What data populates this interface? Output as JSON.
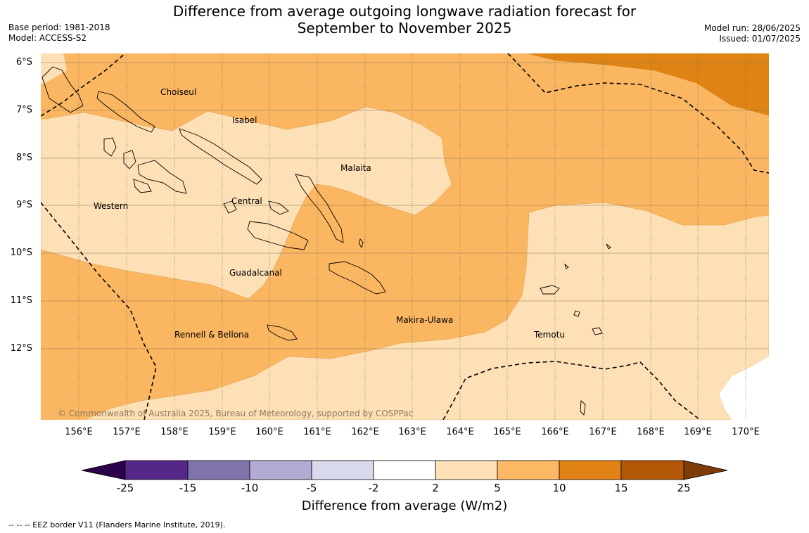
{
  "title_line1": "Difference from average outgoing longwave radiation forecast for",
  "title_line2": "September to November 2025",
  "meta_left": {
    "base_period": "Base period: 1981-2018",
    "model": "Model: ACCESS-S2"
  },
  "meta_right": {
    "model_run": "Model run: 28/06/2025",
    "issued": "Issued: 01/07/2025"
  },
  "lat_labels": [
    "6°S",
    "7°S",
    "8°S",
    "9°S",
    "10°S",
    "11°S",
    "12°S"
  ],
  "lon_labels": [
    "156°E",
    "157°E",
    "158°E",
    "159°E",
    "160°E",
    "161°E",
    "162°E",
    "163°E",
    "164°E",
    "165°E",
    "166°E",
    "167°E",
    "168°E",
    "169°E",
    "170°E"
  ],
  "places": [
    {
      "name": "Choiseul"
    },
    {
      "name": "Isabel"
    },
    {
      "name": "Malaita"
    },
    {
      "name": "Western"
    },
    {
      "name": "Central"
    },
    {
      "name": "Guadalcanal"
    },
    {
      "name": "Makira-Ulawa"
    },
    {
      "name": "Temotu"
    },
    {
      "name": "Rennell & Bellona"
    }
  ],
  "copyright": "© Commonwealth of Australia 2025, Bureau of Meteorology, supported by COSPPac",
  "colorbar": {
    "ticks": [
      "-25",
      "-15",
      "-10",
      "-5",
      "-2",
      "2",
      "5",
      "10",
      "15",
      "25"
    ],
    "colors": [
      "#2d004b",
      "#542788",
      "#8073ac",
      "#b2abd2",
      "#d8daeb",
      "#ffffff",
      "#fee0b6",
      "#fdb863",
      "#e08214",
      "#b35806",
      "#7f3b08"
    ],
    "title": "Difference from average (W/m2)"
  },
  "footnote": "--  --  -- EEZ border V11 (Flanders Marine Institute, 2019).",
  "map_colors": {
    "light": "#fde0b5",
    "mid": "#fbb661",
    "dark": "#e08315"
  }
}
